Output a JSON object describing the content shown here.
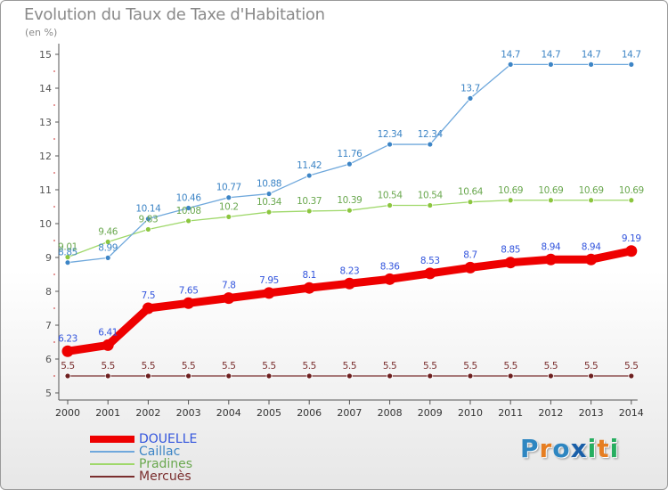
{
  "header": {
    "title": "Evolution du Taux de Taxe d'Habitation",
    "unit": "(en %)"
  },
  "logo": {
    "letters": [
      "P",
      "r",
      "o",
      "x",
      "i",
      "t",
      "i"
    ],
    "colors": [
      "#2e86c1",
      "#e67e22",
      "#2e86c1",
      "#1a5fa8",
      "#27ae60",
      "#e67e22",
      "#27ae60"
    ]
  },
  "chart_data": {
    "type": "line",
    "title": "Evolution du Taux de Taxe d'Habitation",
    "ylabel": "(en %)",
    "xlabel": "",
    "x": [
      "2000",
      "2001",
      "2002",
      "2003",
      "2004",
      "2005",
      "2006",
      "2007",
      "2008",
      "2009",
      "2010",
      "2011",
      "2012",
      "2013",
      "2014"
    ],
    "ylim": [
      5,
      15
    ],
    "yticks": [
      "5",
      "6",
      "7",
      "8",
      "9",
      "10",
      "11",
      "12",
      "13",
      "14",
      "15"
    ],
    "grid": false,
    "legend_position": "bottom-left",
    "series": [
      {
        "name": "DOUELLE",
        "color": "#ee0000",
        "label_color": "#3355dd",
        "values": [
          6.23,
          6.41,
          7.5,
          7.65,
          7.8,
          7.95,
          8.1,
          8.23,
          8.36,
          8.53,
          8.7,
          8.85,
          8.94,
          8.94,
          9.19
        ],
        "labels": [
          "6.23",
          "6.41",
          "7.5",
          "7.65",
          "7.8",
          "7.95",
          "8.1",
          "8.23",
          "8.36",
          "8.53",
          "8.7",
          "8.85",
          "8.94",
          "8.94",
          "9.19"
        ]
      },
      {
        "name": "Caillac",
        "color": "#6fa8dc",
        "marker_color": "#3d85c6",
        "label_color": "#3d85c6",
        "values": [
          8.85,
          8.99,
          10.14,
          10.46,
          10.77,
          10.88,
          11.42,
          11.76,
          12.34,
          12.34,
          13.7,
          14.7,
          14.7,
          14.7,
          14.7
        ],
        "labels": [
          "8.85",
          "8.99",
          "10.14",
          "10.46",
          "10.77",
          "10.88",
          "11.42",
          "11.76",
          "12.34",
          "12.34",
          "13.7",
          "14.7",
          "14.7",
          "14.7",
          "14.7"
        ]
      },
      {
        "name": "Pradines",
        "color": "#9fd86a",
        "marker_color": "#8cc63f",
        "label_color": "#6aa84f",
        "values": [
          9.01,
          9.46,
          9.83,
          10.08,
          10.2,
          10.34,
          10.37,
          10.39,
          10.54,
          10.54,
          10.64,
          10.69,
          10.69,
          10.69,
          10.69
        ],
        "labels": [
          "9.01",
          "9.46",
          "9.83",
          "10.08",
          "10.2",
          "10.34",
          "10.37",
          "10.39",
          "10.54",
          "10.54",
          "10.64",
          "10.69",
          "10.69",
          "10.69",
          "10.69"
        ]
      },
      {
        "name": "Mercuès",
        "color": "#7a2e2e",
        "marker_color": "#6d1f1f",
        "label_color": "#7a2e2e",
        "values": [
          5.5,
          5.5,
          5.5,
          5.5,
          5.5,
          5.5,
          5.5,
          5.5,
          5.5,
          5.5,
          5.5,
          5.5,
          5.5,
          5.5,
          5.5
        ],
        "labels": [
          "5.5",
          "5.5",
          "5.5",
          "5.5",
          "5.5",
          "5.5",
          "5.5",
          "5.5",
          "5.5",
          "5.5",
          "5.5",
          "5.5",
          "5.5",
          "5.5",
          "5.5"
        ]
      }
    ]
  }
}
